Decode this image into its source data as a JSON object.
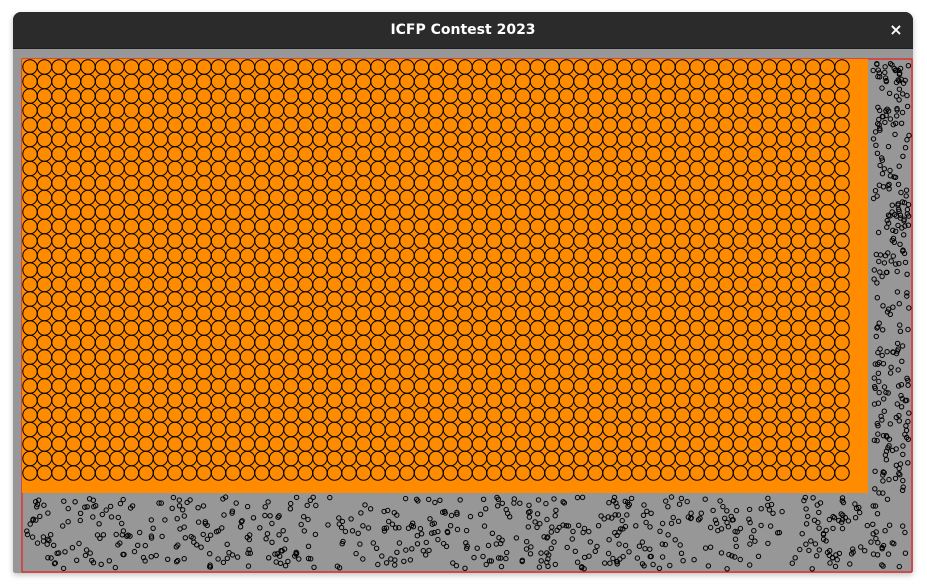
{
  "window": {
    "title": "ICFP Contest 2023",
    "close_label": "×"
  },
  "colors": {
    "titlebar": "#2b2b2b",
    "title_text": "#ffffff",
    "room": "#979797",
    "stage": "#ff8c00",
    "border": "#ff0000",
    "stroke": "#000000"
  }
}
